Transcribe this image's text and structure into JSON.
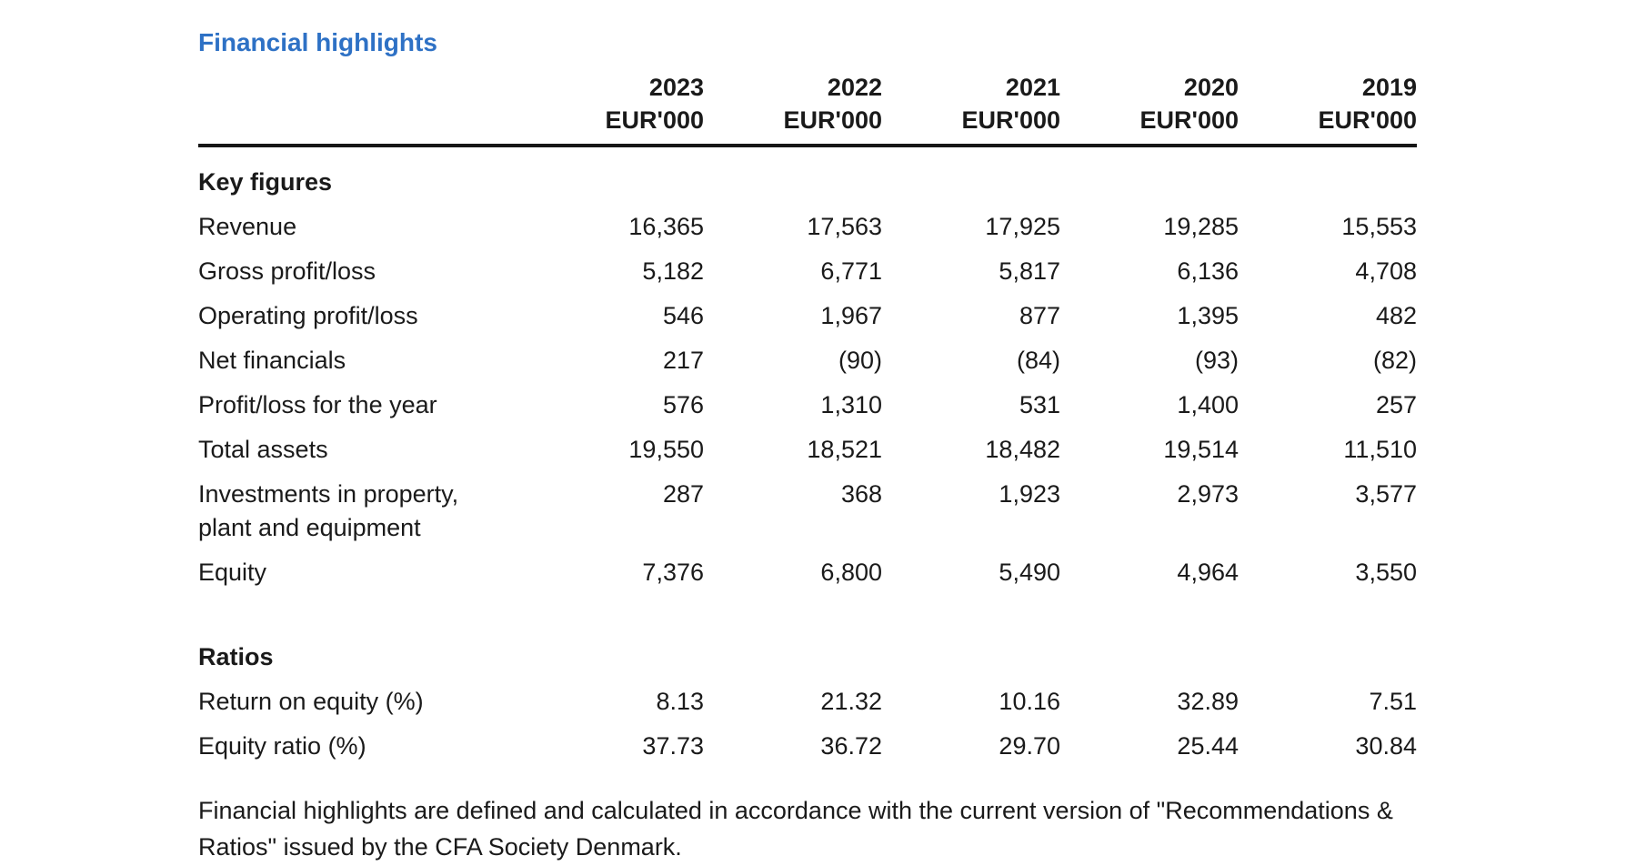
{
  "document": {
    "title": "Financial highlights",
    "accent_color": "#2e71c5",
    "text_color": "#1a1a1a",
    "rule_color": "#161616"
  },
  "table": {
    "columns": [
      {
        "year": "2023",
        "unit": "EUR'000"
      },
      {
        "year": "2022",
        "unit": "EUR'000"
      },
      {
        "year": "2021",
        "unit": "EUR'000"
      },
      {
        "year": "2020",
        "unit": "EUR'000"
      },
      {
        "year": "2019",
        "unit": "EUR'000"
      }
    ],
    "sections": [
      {
        "heading": "Key figures",
        "rows": [
          {
            "label": "Revenue",
            "values": [
              "16,365",
              "17,563",
              "17,925",
              "19,285",
              "15,553"
            ]
          },
          {
            "label": "Gross profit/loss",
            "values": [
              "5,182",
              "6,771",
              "5,817",
              "6,136",
              "4,708"
            ]
          },
          {
            "label": "Operating profit/loss",
            "values": [
              "546",
              "1,967",
              "877",
              "1,395",
              "482"
            ]
          },
          {
            "label": "Net financials",
            "values": [
              "217",
              "(90)",
              "(84)",
              "(93)",
              "(82)"
            ]
          },
          {
            "label": "Profit/loss for the year",
            "values": [
              "576",
              "1,310",
              "531",
              "1,400",
              "257"
            ]
          },
          {
            "label": "Total assets",
            "values": [
              "19,550",
              "18,521",
              "18,482",
              "19,514",
              "11,510"
            ]
          },
          {
            "label": "Investments in property,",
            "label_line2": "plant and equipment",
            "values": [
              "287",
              "368",
              "1,923",
              "2,973",
              "3,577"
            ]
          },
          {
            "label": "Equity",
            "values": [
              "7,376",
              "6,800",
              "5,490",
              "4,964",
              "3,550"
            ]
          }
        ]
      },
      {
        "heading": "Ratios",
        "rows": [
          {
            "label": "Return on equity (%)",
            "values": [
              "8.13",
              "21.32",
              "10.16",
              "32.89",
              "7.51"
            ]
          },
          {
            "label": "Equity ratio (%)",
            "values": [
              "37.73",
              "36.72",
              "29.70",
              "25.44",
              "30.84"
            ]
          }
        ]
      }
    ]
  },
  "footnote": {
    "line1": "Financial highlights are defined and calculated in accordance with the current version of \"Recommendations &",
    "line2": "Ratios\" issued by the CFA Society Denmark."
  }
}
